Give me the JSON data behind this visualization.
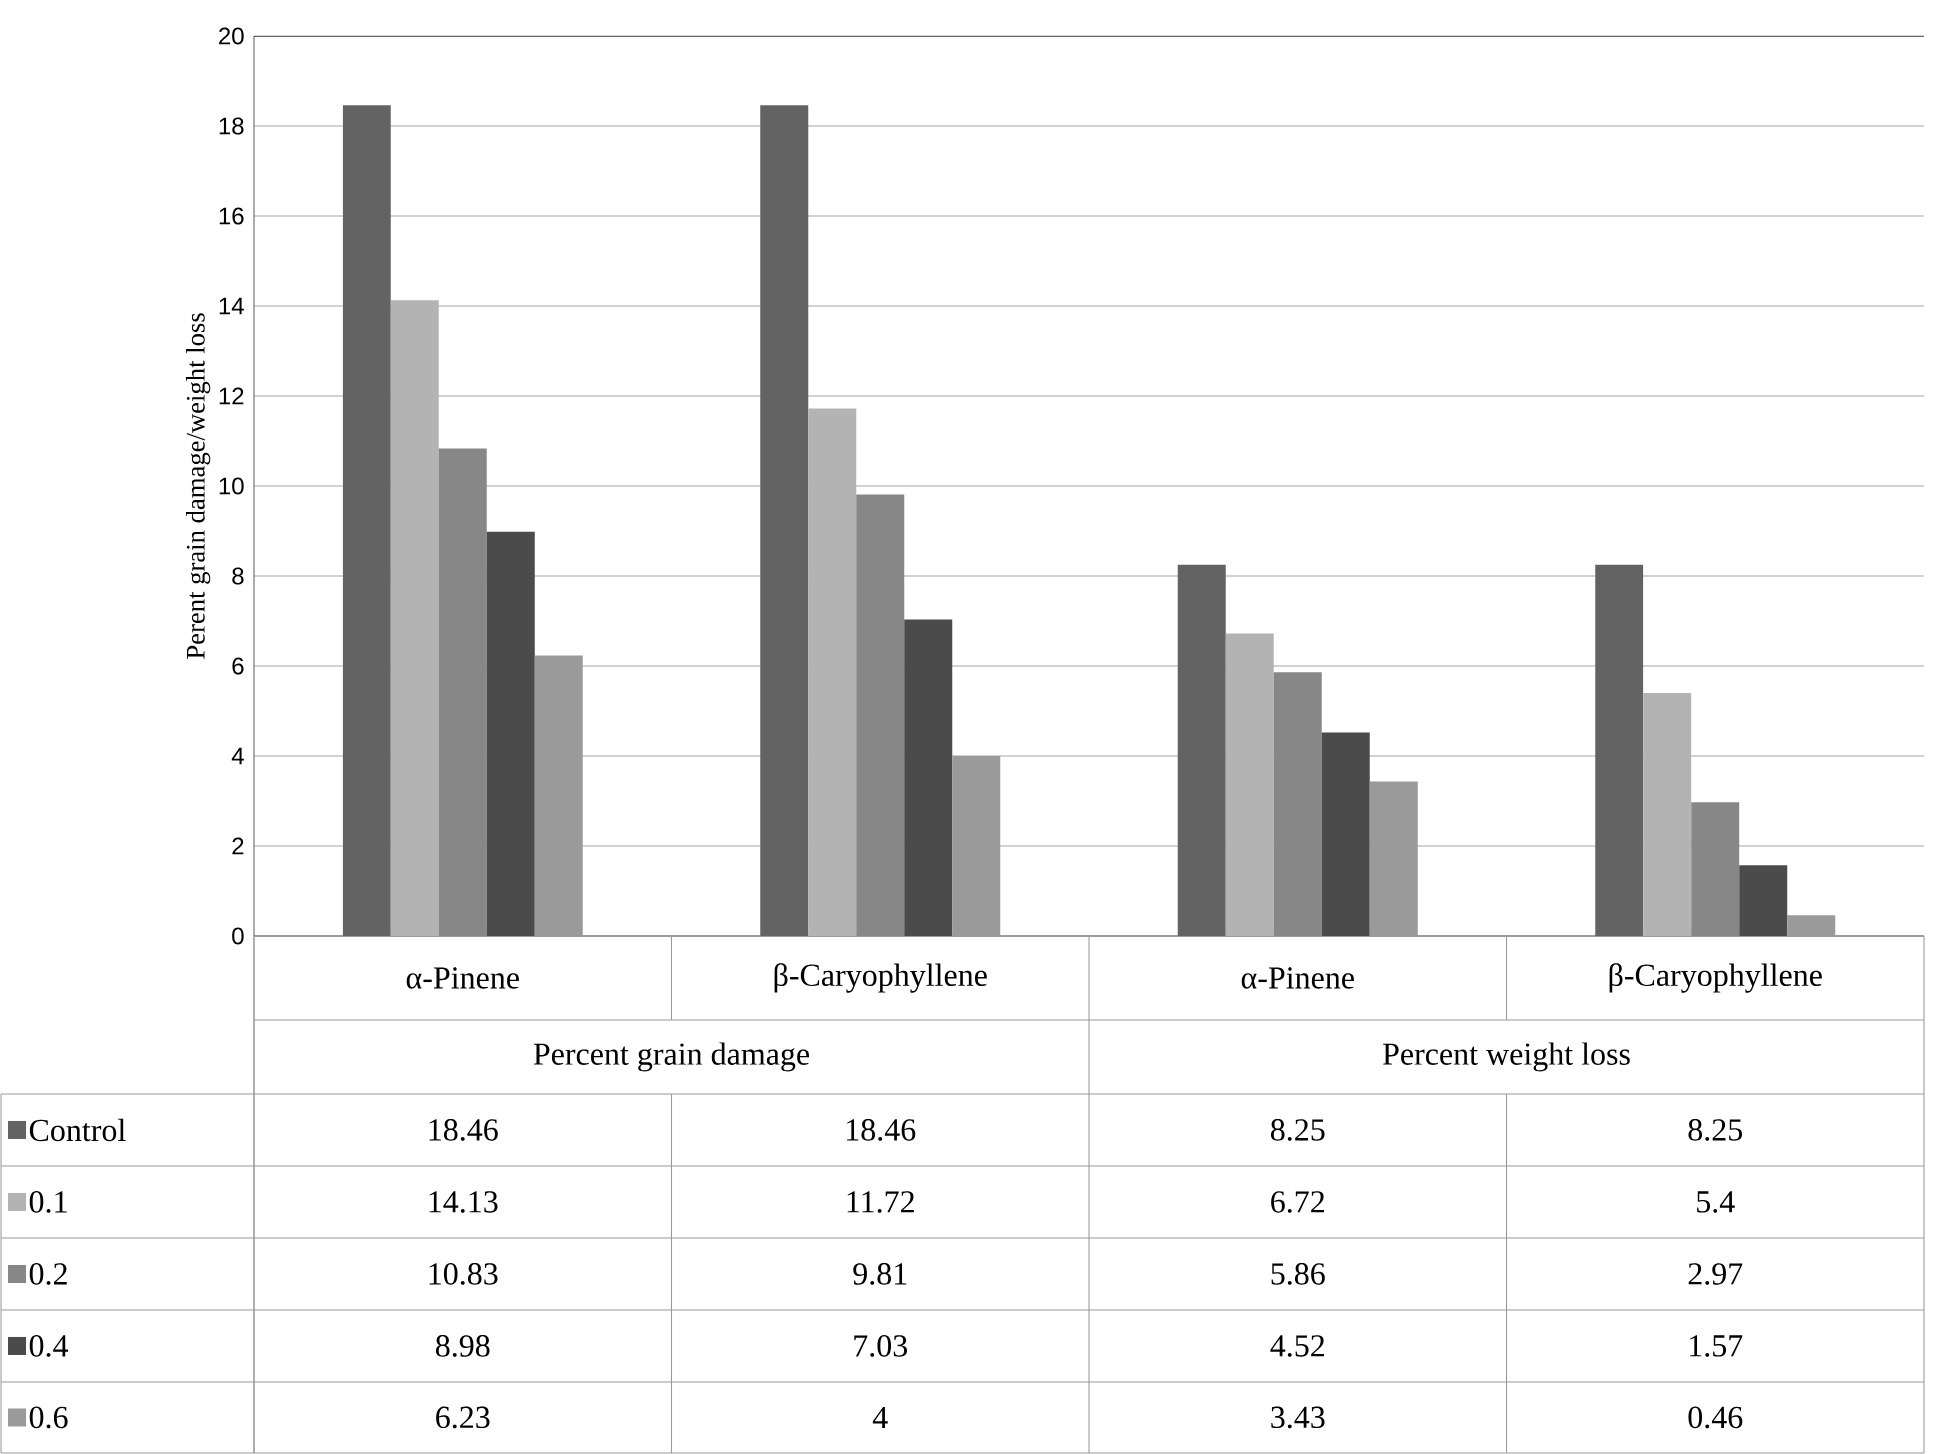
{
  "chart_data": {
    "type": "bar",
    "ylabel": "Perent grain damage/weight loss",
    "categories": [
      "α-Pinene",
      "β-Caryophyllene",
      "α-Pinene",
      "β-Caryophyllene"
    ],
    "annotations": [
      "Percent grain damage",
      "Percent weight loss"
    ],
    "series": [
      {
        "name": "Control",
        "color": "#636363",
        "values": [
          18.46,
          18.46,
          8.25,
          8.25
        ]
      },
      {
        "name": "0.1",
        "color": "#b3b3b3",
        "values": [
          14.13,
          11.72,
          6.72,
          5.4
        ]
      },
      {
        "name": "0.2",
        "color": "#878787",
        "values": [
          10.83,
          9.81,
          5.86,
          2.97
        ]
      },
      {
        "name": "0.4",
        "color": "#4b4b4b",
        "values": [
          8.98,
          7.03,
          4.52,
          1.57
        ]
      },
      {
        "name": "0.6",
        "color": "#9a9a9a",
        "values": [
          6.23,
          4,
          3.43,
          0.46
        ]
      }
    ],
    "ylim": [
      0,
      20
    ],
    "yticks": [
      0,
      2,
      4,
      6,
      8,
      10,
      12,
      14,
      16,
      18,
      20
    ],
    "grid": "y",
    "legend": "bottom",
    "data_labels": true
  }
}
